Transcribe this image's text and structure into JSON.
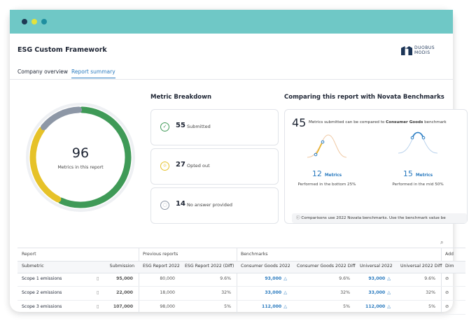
{
  "header": {
    "title": "ESG Custom Framework",
    "logo": [
      "DUOBUS",
      "MODIS"
    ]
  },
  "tabs": {
    "items": [
      "Company overview",
      "Report summary"
    ],
    "active": 1
  },
  "summary": {
    "total": 96,
    "total_label": "Metrics in this report"
  },
  "breakdown": {
    "title": "Metric Breakdown",
    "items": [
      {
        "value": 55,
        "label": "Submitted",
        "color": "#3f9a57"
      },
      {
        "value": 27,
        "label": "Opted out",
        "color": "#e6c229"
      },
      {
        "value": 14,
        "label": "No answer provided",
        "color": "#8d97a6"
      }
    ]
  },
  "benchmarks": {
    "title": "Comparing this report with Novata Benchmarks",
    "count": 45,
    "text_prefix": "Metrics submitted can be compared to",
    "text_bold": "Consumer Goods",
    "text_suffix": "benchmark",
    "groups": [
      {
        "value": 12,
        "unit": "Metrics",
        "caption": "Performed in the bottom 25%"
      },
      {
        "value": 15,
        "unit": "Metrics",
        "caption": "Performed in the mid 50%"
      }
    ],
    "note": "Comparisons use 2022 Novata benchmarks. Use the benchmark value be"
  },
  "table": {
    "groups": [
      "Report",
      "Previous reports",
      "Benchmarks",
      "Add"
    ],
    "columns": [
      "Submetric",
      "Submission",
      "ESG Report 2022",
      "ESG Report 2022 (Diff)",
      "Consumer Goods 2022",
      "Consumer Goods 2022 Diff",
      "Universal 2022",
      "Universal 2022 Diff",
      "Dim"
    ],
    "rows": [
      {
        "name": "Scope 1 emissions",
        "cells": [
          "95,000",
          "80,000",
          "9.6%",
          "93,000",
          "9.6%",
          "93,000",
          "9.6%"
        ]
      },
      {
        "name": "Scope 2 emissions",
        "cells": [
          "22,000",
          "18,000",
          "32%",
          "33,000",
          "32%",
          "33,000",
          "32%"
        ]
      },
      {
        "name": "Scope 3 emissions",
        "cells": [
          "107,000",
          "98,000",
          "5%",
          "112,000",
          "5%",
          "112,000",
          "5%"
        ]
      }
    ]
  }
}
